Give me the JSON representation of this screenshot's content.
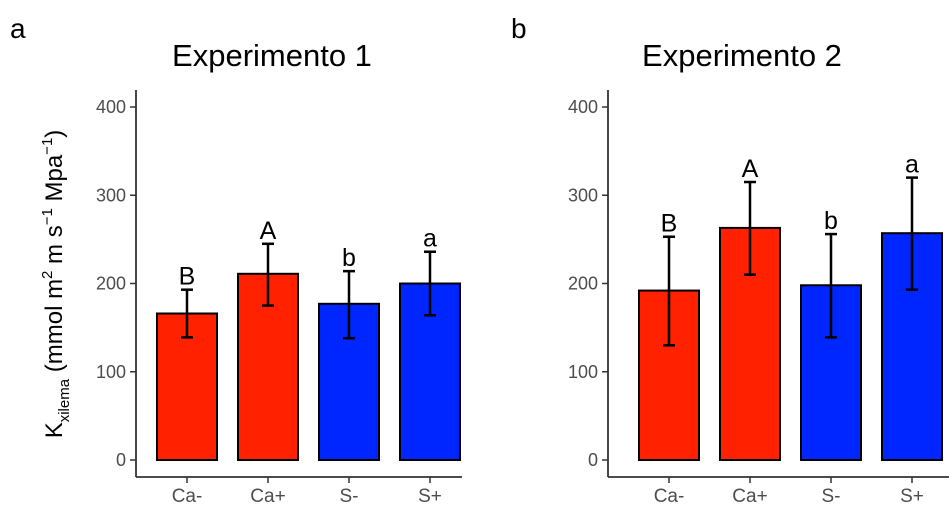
{
  "ylabel": {
    "base": "K",
    "subscript": "xilema",
    "part1": " (mmol m",
    "sup1": "2",
    "part2": " m s",
    "sup2": "−1",
    "part3": " Mpa",
    "sup3": "−1",
    "part4": ")"
  },
  "colors": {
    "Ca": "#ff2100",
    "S": "#0026ff",
    "outline": "#000000",
    "axis": "#333333",
    "ticklabel": "#4d4d4d"
  },
  "chart_data": [
    {
      "type": "bar",
      "panel": "a",
      "title": "Experimento 1",
      "categories": [
        "Ca-",
        "Ca+",
        "S-",
        "S+"
      ],
      "values": [
        166,
        211,
        177,
        200
      ],
      "error_low": [
        139,
        175,
        138,
        164
      ],
      "error_high": [
        193,
        245,
        214,
        236
      ],
      "letters": [
        "B",
        "A",
        "b",
        "a"
      ],
      "bar_colors": [
        "#ff2100",
        "#ff2100",
        "#0026ff",
        "#0026ff"
      ],
      "yticks": [
        0,
        100,
        200,
        300,
        400
      ],
      "ylim": [
        0,
        415
      ],
      "grid": false,
      "legend": "none"
    },
    {
      "type": "bar",
      "panel": "b",
      "title": "Experimento 2",
      "categories": [
        "Ca-",
        "Ca+",
        "S-",
        "S+"
      ],
      "values": [
        192,
        263,
        198,
        257
      ],
      "error_low": [
        130,
        210,
        139,
        193
      ],
      "error_high": [
        253,
        315,
        256,
        320
      ],
      "letters": [
        "B",
        "A",
        "b",
        "a"
      ],
      "bar_colors": [
        "#ff2100",
        "#ff2100",
        "#0026ff",
        "#0026ff"
      ],
      "yticks": [
        0,
        100,
        200,
        300,
        400
      ],
      "ylim": [
        0,
        415
      ],
      "grid": false,
      "legend": "none"
    }
  ]
}
